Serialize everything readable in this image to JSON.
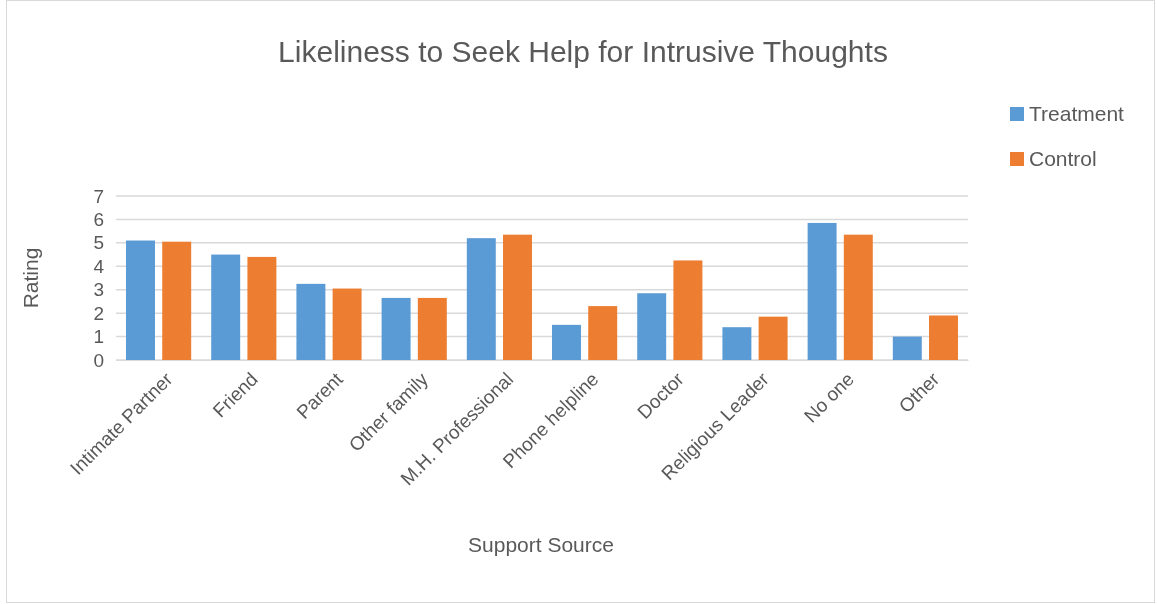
{
  "chart_data": {
    "type": "bar",
    "title": "Likeliness to Seek Help for Intrusive Thoughts",
    "xlabel": "Support Source",
    "ylabel": "Rating",
    "categories": [
      "Intimate Partner",
      "Friend",
      "Parent",
      "Other family",
      "M.H. Professional",
      "Phone helpline",
      "Doctor",
      "Religious Leader",
      "No one",
      "Other"
    ],
    "series": [
      {
        "name": "Treatment",
        "color": "#5b9bd5",
        "values": [
          5.1,
          4.5,
          3.25,
          2.65,
          5.2,
          1.5,
          2.85,
          1.4,
          5.85,
          1.0
        ]
      },
      {
        "name": "Control",
        "color": "#ed7d31",
        "values": [
          5.05,
          4.4,
          3.05,
          2.65,
          5.35,
          2.3,
          4.25,
          1.85,
          5.35,
          1.9
        ]
      }
    ],
    "ylim": [
      0,
      7
    ],
    "yticks": [
      0,
      1,
      2,
      3,
      4,
      5,
      6,
      7
    ],
    "grid": "y",
    "legend": "top right"
  }
}
